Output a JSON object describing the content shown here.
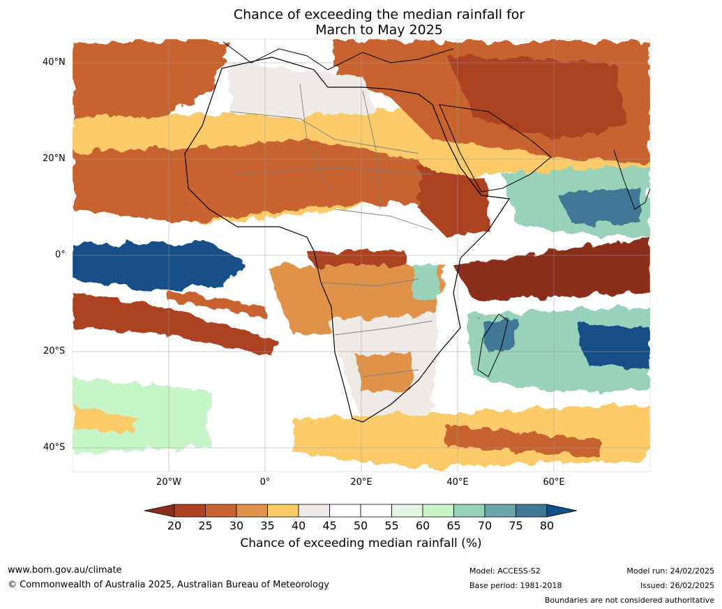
{
  "title": {
    "line1": "Chance of exceeding the median rainfall for",
    "line2": "March to May 2025"
  },
  "map": {
    "region": "Africa",
    "lat_labels": [
      "40°N",
      "20°N",
      "0°",
      "20°S",
      "40°S"
    ],
    "lon_labels": [
      "20°W",
      "0°",
      "20°E",
      "40°E",
      "60°E"
    ],
    "gridlines": true
  },
  "colorbar": {
    "ticks": [
      "20",
      "25",
      "30",
      "35",
      "40",
      "45",
      "50",
      "55",
      "60",
      "65",
      "70",
      "75",
      "80"
    ],
    "colors": [
      "#8b2f1a",
      "#ad4322",
      "#c8622e",
      "#e0924a",
      "#fbcb6a",
      "#eeeae5",
      "#ffffff",
      "#ffffff",
      "#e5f5e5",
      "#c8f5c8",
      "#98d2b8",
      "#6aa5a8",
      "#3f7895",
      "#134f88"
    ],
    "label": "Chance of exceeding median rainfall (%)"
  },
  "footer": {
    "website": "www.bom.gov.au/climate",
    "copyright": "© Commonwealth of Australia 2025, Australian Bureau of Meteorology",
    "model": "Model: ACCESS-S2",
    "base_period": "Base period: 1981-2018",
    "model_run": "Model run: 24/02/2025",
    "issued": "Issued: 26/02/2025",
    "disclaimer": "Boundaries are not considered authoritative"
  }
}
